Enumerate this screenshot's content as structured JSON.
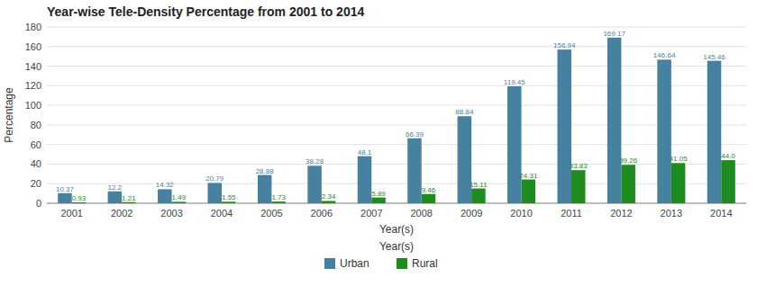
{
  "chart_data": {
    "type": "bar",
    "title": "Year-wise Tele-Density Percentage from 2001 to 2014",
    "x_label": "Year(s)",
    "y_label": "Percentage",
    "categories": [
      "2001",
      "2002",
      "2003",
      "2004",
      "2005",
      "2006",
      "2007",
      "2008",
      "2009",
      "2010",
      "2011",
      "2012",
      "2013",
      "2014"
    ],
    "series": [
      {
        "name": "Urban",
        "color": "#4682a0",
        "values": [
          10.37,
          12.2,
          14.32,
          20.79,
          28.88,
          38.28,
          48.1,
          66.39,
          88.84,
          119.45,
          156.94,
          169.17,
          146.64,
          145.46
        ],
        "value_labels": [
          "10.37",
          "12.2",
          "14.32",
          "20.79",
          "28.88",
          "38.28",
          "48.1",
          "66.39",
          "88.84",
          "119.45",
          "156.94",
          "169.17",
          "146.64",
          "145.46"
        ]
      },
      {
        "name": "Rural",
        "color": "#1e8c1e",
        "values": [
          0.93,
          1.21,
          1.49,
          1.55,
          1.73,
          2.34,
          5.89,
          9.46,
          15.11,
          24.31,
          33.83,
          39.26,
          41.05,
          44.0
        ],
        "value_labels": [
          "0.93",
          "1.21",
          "1.49",
          "1.55",
          "1.73",
          "2.34",
          "5.89",
          "9.46",
          "15.11",
          "24.31",
          "33.83",
          "39.26",
          "41.05",
          "44.0"
        ]
      }
    ],
    "ylim": [
      0,
      180
    ],
    "yticks": [
      0,
      20,
      40,
      60,
      80,
      100,
      120,
      140,
      160,
      180
    ],
    "grid": true,
    "legend": "bottom",
    "data_labels": true
  }
}
